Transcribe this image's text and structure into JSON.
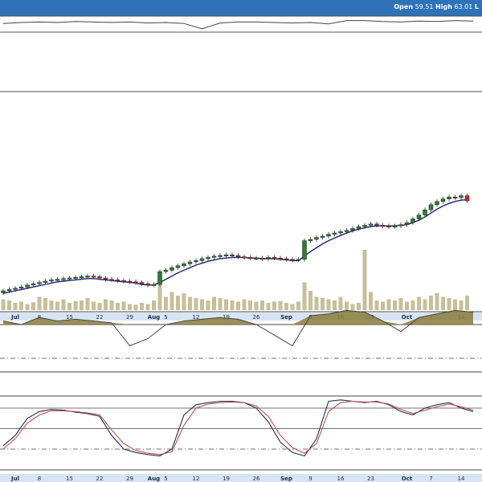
{
  "header": {
    "open_label": "Open",
    "open_value": "59.51",
    "high_label": "High",
    "high_value": "63.01",
    "more": "L"
  },
  "colors": {
    "header_bg": "#2f72b8",
    "axis_bar": "#d8e4f2",
    "up_candle": "#2e7d32",
    "down_candle": "#c62828",
    "moving_average": "#1a237e",
    "volume": "#c8bf9a",
    "indicator_fill": "#8a7d3a",
    "stoch_k": "#1f2f5a",
    "stoch_d": "#c0504d"
  },
  "chart_data": [
    {
      "type": "line",
      "panel": "top indicator",
      "x": [
        0,
        3,
        6,
        9,
        12,
        15,
        18,
        21,
        24,
        27,
        30,
        33,
        36,
        39,
        42,
        45,
        48,
        51,
        54,
        57,
        60,
        63,
        66,
        69,
        72,
        75,
        78
      ],
      "values": [
        0.3,
        0.5,
        0.6,
        0.5,
        0.7,
        0.6,
        0.5,
        0.6,
        0.4,
        0.5,
        0.3,
        -0.8,
        0.4,
        0.6,
        0.6,
        0.5,
        0.4,
        0.5,
        0.2,
        0.9,
        0.9,
        0.7,
        0.6,
        0.8,
        0.7,
        0.9,
        0.8
      ]
    },
    {
      "type": "candlestick",
      "panel": "price",
      "x_ticks": [
        {
          "i": 2,
          "label": "Jul"
        },
        {
          "i": 6,
          "label": "8"
        },
        {
          "i": 11,
          "label": "15"
        },
        {
          "i": 16,
          "label": "22"
        },
        {
          "i": 21,
          "label": "29"
        },
        {
          "i": 25,
          "label": "Aug"
        },
        {
          "i": 27,
          "label": "5"
        },
        {
          "i": 32,
          "label": "12"
        },
        {
          "i": 37,
          "label": "19"
        },
        {
          "i": 42,
          "label": "26"
        },
        {
          "i": 47,
          "label": "Sep"
        },
        {
          "i": 51,
          "label": "9"
        },
        {
          "i": 56,
          "label": "16"
        },
        {
          "i": 61,
          "label": "23"
        },
        {
          "i": 67,
          "label": "Oct"
        },
        {
          "i": 71,
          "label": "7"
        },
        {
          "i": 76,
          "label": "14"
        }
      ],
      "close": [
        48.0,
        48.2,
        48.4,
        48.6,
        48.9,
        49.1,
        49.3,
        49.5,
        49.7,
        49.8,
        49.9,
        50.0,
        50.1,
        50.2,
        50.3,
        50.2,
        50.0,
        49.8,
        49.7,
        49.6,
        49.5,
        49.4,
        49.3,
        49.1,
        48.9,
        49.0,
        51.0,
        51.2,
        51.6,
        51.9,
        52.2,
        52.5,
        52.7,
        53.0,
        53.2,
        53.4,
        53.5,
        53.6,
        53.5,
        53.3,
        53.2,
        53.1,
        53.1,
        53.0,
        53.2,
        53.1,
        53.0,
        52.9,
        52.8,
        52.9,
        55.8,
        56.0,
        56.3,
        56.5,
        56.8,
        57.0,
        57.2,
        57.4,
        57.7,
        58.0,
        58.2,
        58.4,
        58.2,
        58.1,
        58.0,
        58.1,
        58.3,
        58.6,
        59.2,
        59.8,
        60.6,
        61.4,
        61.9,
        62.3,
        62.6,
        62.5,
        62.8,
        62.0
      ],
      "moving_average": [
        47.6,
        47.8,
        48.0,
        48.2,
        48.4,
        48.6,
        48.8,
        49.0,
        49.2,
        49.4,
        49.5,
        49.6,
        49.7,
        49.8,
        49.9,
        49.9,
        49.8,
        49.7,
        49.6,
        49.5,
        49.4,
        49.3,
        49.2,
        49.0,
        48.9,
        48.9,
        49.3,
        49.8,
        50.3,
        50.8,
        51.2,
        51.6,
        52.0,
        52.3,
        52.6,
        52.8,
        53.0,
        53.1,
        53.2,
        53.2,
        53.2,
        53.1,
        53.1,
        53.0,
        53.0,
        53.0,
        52.9,
        52.8,
        52.7,
        52.7,
        53.4,
        54.1,
        54.7,
        55.3,
        55.8,
        56.2,
        56.6,
        57.0,
        57.3,
        57.6,
        57.8,
        58.0,
        58.1,
        58.1,
        58.1,
        58.1,
        58.2,
        58.3,
        58.6,
        59.0,
        59.5,
        60.1,
        60.7,
        61.2,
        61.6,
        61.9,
        62.1,
        62.2
      ],
      "volume": [
        18,
        16,
        12,
        14,
        10,
        13,
        22,
        20,
        16,
        14,
        18,
        12,
        15,
        16,
        20,
        14,
        12,
        18,
        16,
        12,
        14,
        10,
        9,
        12,
        10,
        16,
        45,
        22,
        30,
        24,
        28,
        22,
        20,
        18,
        16,
        22,
        20,
        18,
        16,
        14,
        18,
        16,
        14,
        16,
        12,
        14,
        15,
        12,
        10,
        14,
        46,
        32,
        22,
        20,
        18,
        16,
        22,
        14,
        10,
        12,
        100,
        30,
        16,
        14,
        18,
        16,
        20,
        14,
        16,
        22,
        18,
        24,
        28,
        22,
        20,
        18,
        16,
        24
      ]
    },
    {
      "type": "area",
      "panel": "middle indicator",
      "x": [
        0,
        3,
        6,
        9,
        12,
        15,
        18,
        21,
        24,
        27,
        30,
        33,
        36,
        39,
        42,
        45,
        48,
        51,
        54,
        57,
        60,
        63,
        66,
        69,
        72,
        75,
        78
      ],
      "values": [
        0.1,
        0.0,
        0.2,
        0.1,
        0.15,
        0.1,
        0.05,
        -0.6,
        -0.4,
        0.0,
        0.1,
        0.15,
        0.2,
        0.15,
        0.0,
        -0.3,
        -0.6,
        0.25,
        0.3,
        0.4,
        0.35,
        0.1,
        -0.2,
        0.2,
        0.3,
        0.4,
        0.35
      ]
    },
    {
      "type": "line",
      "panel": "stochastic",
      "x": [
        0,
        2,
        4,
        6,
        8,
        10,
        12,
        14,
        16,
        18,
        20,
        22,
        24,
        26,
        28,
        30,
        32,
        34,
        36,
        38,
        40,
        42,
        44,
        46,
        48,
        50,
        52,
        54,
        56,
        58,
        60,
        62,
        64,
        66,
        68,
        70,
        72,
        74,
        76,
        78
      ],
      "series": [
        {
          "values": [
            25,
            40,
            65,
            75,
            78,
            77,
            74,
            72,
            68,
            40,
            20,
            15,
            12,
            10,
            20,
            70,
            85,
            88,
            90,
            90,
            88,
            80,
            60,
            30,
            15,
            10,
            35,
            90,
            92,
            90,
            88,
            90,
            85,
            75,
            70,
            80,
            85,
            88,
            80,
            75
          ]
        },
        {
          "values": [
            20,
            35,
            58,
            70,
            76,
            76,
            75,
            73,
            70,
            48,
            28,
            18,
            14,
            12,
            16,
            55,
            80,
            86,
            88,
            89,
            88,
            83,
            68,
            40,
            22,
            14,
            28,
            75,
            88,
            90,
            89,
            89,
            86,
            78,
            72,
            77,
            82,
            86,
            82,
            77
          ]
        }
      ]
    }
  ]
}
